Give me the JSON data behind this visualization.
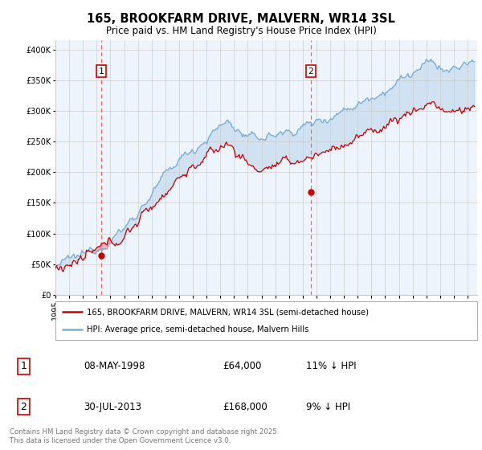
{
  "title": "165, BROOKFARM DRIVE, MALVERN, WR14 3SL",
  "subtitle": "Price paid vs. HM Land Registry's House Price Index (HPI)",
  "ytick_values": [
    0,
    50000,
    100000,
    150000,
    200000,
    250000,
    300000,
    350000,
    400000
  ],
  "ylim": [
    0,
    415000
  ],
  "xlim_start": 1995.0,
  "xlim_end": 2025.7,
  "sale1_date": 1998.35,
  "sale1_price": 64000,
  "sale1_label": "1",
  "sale2_date": 2013.58,
  "sale2_price": 168000,
  "sale2_label": "2",
  "red_color": "#cc0000",
  "blue_color": "#7aadd4",
  "blue_fill": "#ddeeff",
  "dashed_red": "#ff6666",
  "legend_label_red": "165, BROOKFARM DRIVE, MALVERN, WR14 3SL (semi-detached house)",
  "legend_label_blue": "HPI: Average price, semi-detached house, Malvern Hills",
  "table_entries": [
    {
      "num": "1",
      "date": "08-MAY-1998",
      "price": "£64,000",
      "hpi": "11% ↓ HPI"
    },
    {
      "num": "2",
      "date": "30-JUL-2013",
      "price": "£168,000",
      "hpi": "9% ↓ HPI"
    }
  ],
  "footer": "Contains HM Land Registry data © Crown copyright and database right 2025.\nThis data is licensed under the Open Government Licence v3.0.",
  "background_color": "#ffffff",
  "grid_color": "#cccccc"
}
